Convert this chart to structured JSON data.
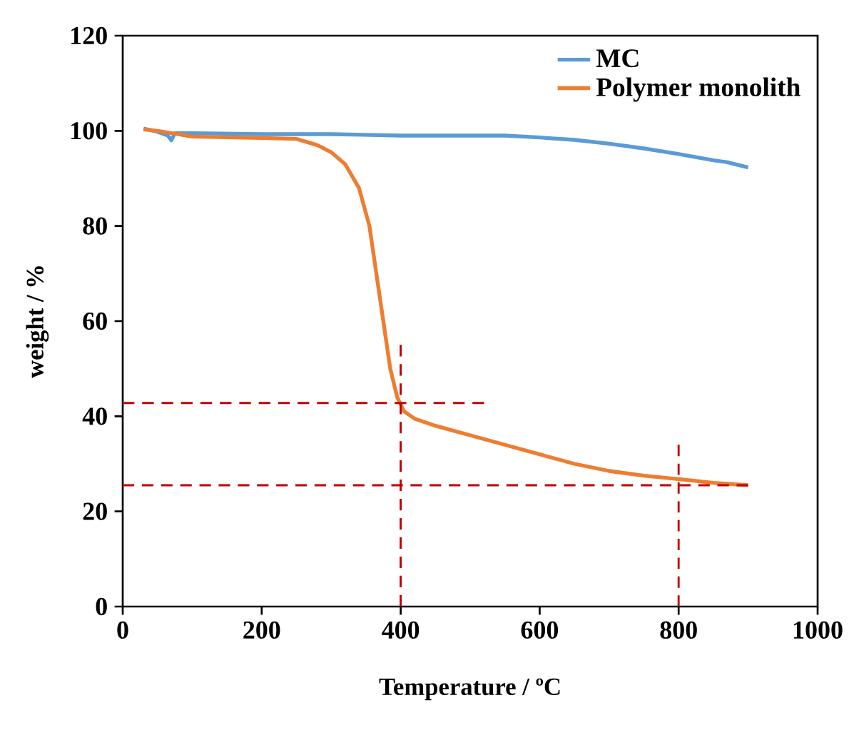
{
  "chart_data": {
    "type": "line",
    "xlabel": "Temperature / ºC",
    "ylabel": "weight / %",
    "xlim": [
      0,
      1000
    ],
    "ylim": [
      0,
      120
    ],
    "xticks": [
      0,
      200,
      400,
      600,
      800,
      1000
    ],
    "yticks": [
      0,
      20,
      40,
      60,
      80,
      100,
      120
    ],
    "grid": false,
    "legend": "top right",
    "marker": "none",
    "series": [
      {
        "name": "MC",
        "color": "#5b9bd5",
        "line_style": "solid",
        "x": [
          30,
          50,
          65,
          70,
          75,
          100,
          200,
          300,
          400,
          550,
          600,
          650,
          700,
          750,
          800,
          850,
          870,
          900
        ],
        "values": [
          100.5,
          99.8,
          99,
          98,
          99.5,
          99.5,
          99.3,
          99.3,
          99,
          99,
          98.6,
          98.1,
          97.3,
          96.3,
          95.1,
          93.8,
          93.4,
          92.3
        ]
      },
      {
        "name": "Polymer monolith",
        "color": "#ed7d31",
        "line_style": "solid",
        "x": [
          30,
          50,
          100,
          200,
          250,
          280,
          300,
          320,
          340,
          355,
          365,
          375,
          385,
          395,
          405,
          420,
          450,
          500,
          550,
          600,
          650,
          700,
          750,
          800,
          850,
          900
        ],
        "values": [
          100.3,
          100,
          98.8,
          98.5,
          98.3,
          97,
          95.5,
          93,
          88,
          80,
          70,
          60,
          50,
          44,
          41,
          39.5,
          38,
          36,
          34,
          32,
          30,
          28.5,
          27.5,
          26.8,
          26,
          25.5
        ]
      },
      {
        "color": "#c00000",
        "line_style": "dashed",
        "x": [
          0,
          520
        ],
        "values": [
          42.8,
          42.8
        ]
      },
      {
        "color": "#c00000",
        "line_style": "dashed",
        "x": [
          0,
          900
        ],
        "values": [
          25.5,
          25.5
        ]
      },
      {
        "color": "#c00000",
        "line_style": "dashed",
        "x": [
          400,
          400
        ],
        "values": [
          0,
          55
        ]
      },
      {
        "color": "#c00000",
        "line_style": "dashed",
        "x": [
          800,
          800
        ],
        "values": [
          0,
          34
        ]
      }
    ]
  }
}
